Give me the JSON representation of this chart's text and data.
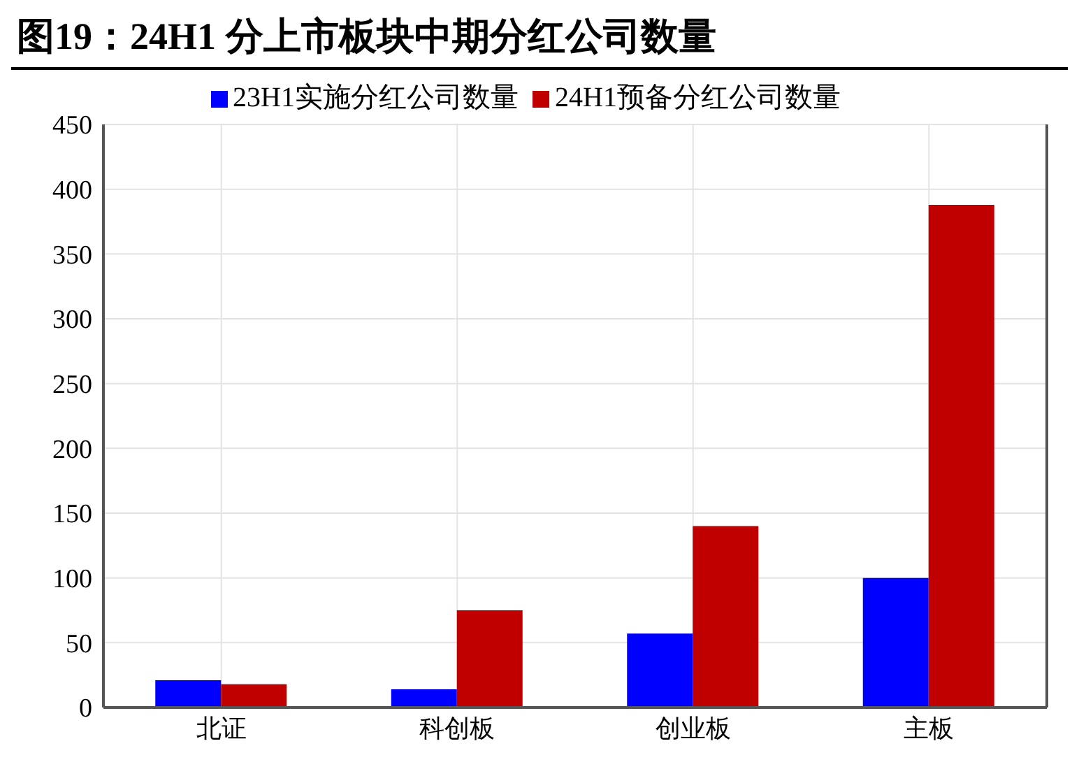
{
  "chart_data": {
    "type": "bar",
    "title": "图19：24H1 分上市板块中期分红公司数量",
    "categories": [
      "北证",
      "科创板",
      "创业板",
      "主板"
    ],
    "series": [
      {
        "name": "23H1实施分红公司数量",
        "color": "#0000ff",
        "values": [
          21,
          14,
          57,
          100
        ]
      },
      {
        "name": "24H1预备分红公司数量",
        "color": "#c00000",
        "values": [
          18,
          75,
          140,
          388
        ]
      }
    ],
    "ylim": [
      0,
      450
    ],
    "yticks": [
      0,
      50,
      100,
      150,
      200,
      250,
      300,
      350,
      400,
      450
    ],
    "grid": true,
    "legend": "top"
  }
}
